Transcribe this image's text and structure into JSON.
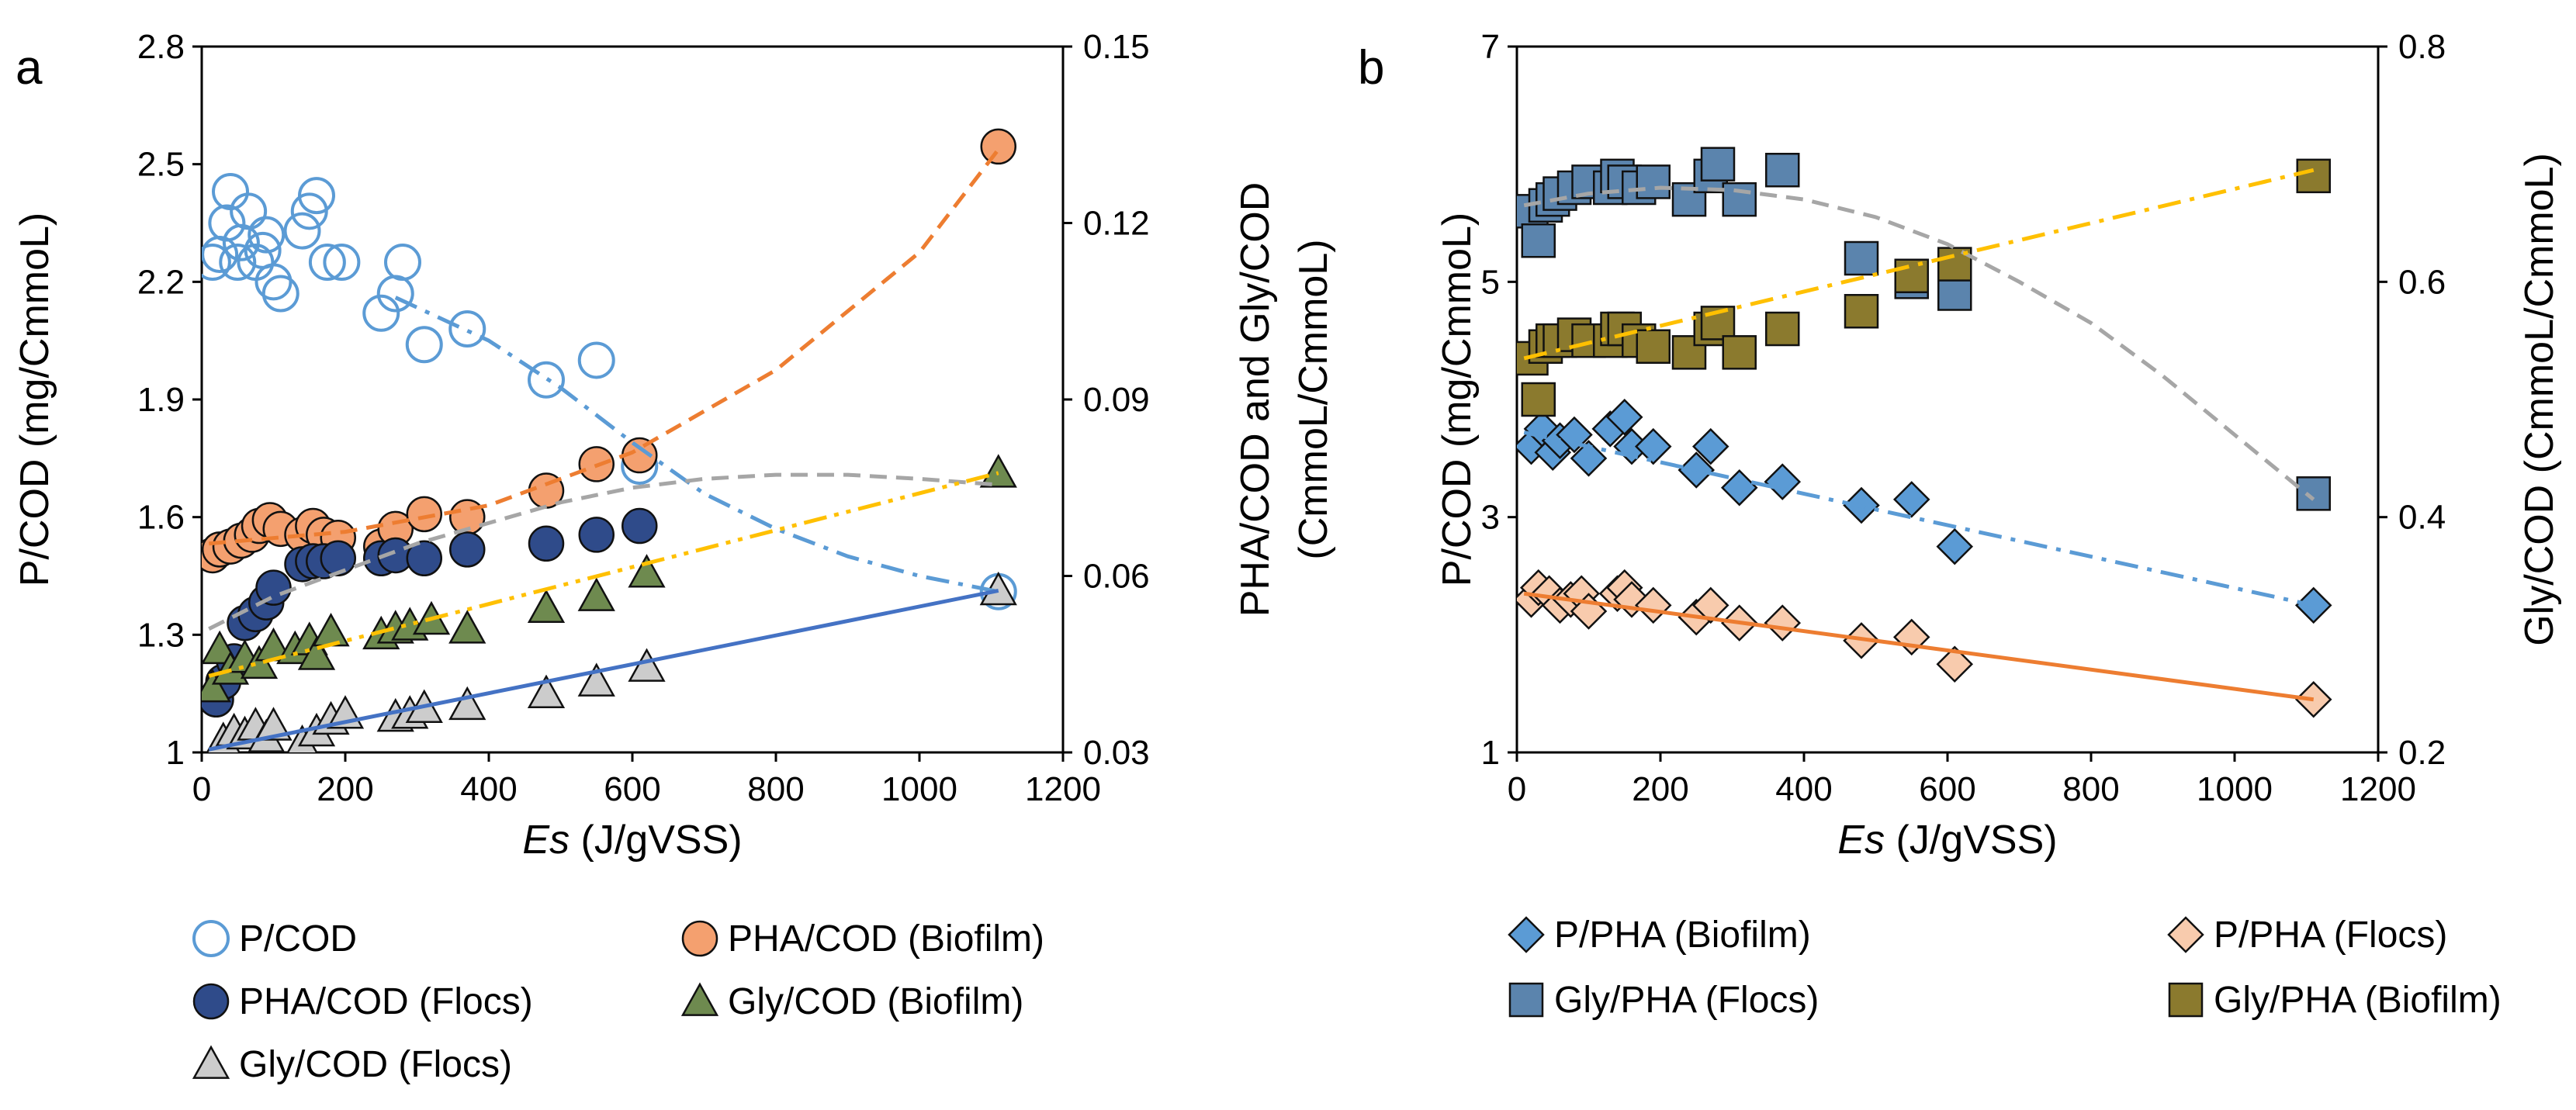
{
  "chart_data": [
    {
      "type": "scatter",
      "panel_label": "a",
      "xlabel_italic": "Es",
      "xlabel_rest": " (J/gVSS)",
      "ylabel": "P/COD (mg/CmmoL)",
      "y2label_line1": "PHA/COD and Gly/COD",
      "y2label_line2": "(CmmoL/CmmoL)",
      "xlim": [
        0,
        1200
      ],
      "ylim": [
        1,
        2.8
      ],
      "y2lim": [
        0.03,
        0.15
      ],
      "xticks": [
        "0",
        "200",
        "400",
        "600",
        "800",
        "1000",
        "1200"
      ],
      "yticks": [
        "1",
        "1.3",
        "1.6",
        "1.9",
        "2.2",
        "2.5",
        "2.8"
      ],
      "y2ticks": [
        "0.03",
        "0.06",
        "0.09",
        "0.12",
        "0.15"
      ],
      "series": [
        {
          "name": "P/COD",
          "axis": "y",
          "marker": "circle-open",
          "color": "#5b9bd5",
          "x": [
            15,
            25,
            35,
            40,
            50,
            55,
            65,
            75,
            85,
            90,
            100,
            110,
            140,
            150,
            160,
            175,
            195,
            250,
            270,
            280,
            310,
            370,
            480,
            550,
            610,
            1110
          ],
          "y": [
            2.25,
            2.27,
            2.35,
            2.43,
            2.25,
            2.3,
            2.38,
            2.25,
            2.28,
            2.32,
            2.2,
            2.17,
            2.33,
            2.38,
            2.42,
            2.25,
            2.25,
            2.12,
            2.17,
            2.25,
            2.04,
            2.08,
            1.95,
            2.0,
            1.73,
            1.41
          ]
        },
        {
          "name": "PHA/COD (Biofilm)",
          "axis": "y2",
          "marker": "circle",
          "color": "#f4a06f",
          "x": [
            15,
            25,
            40,
            55,
            70,
            80,
            95,
            110,
            140,
            155,
            170,
            190,
            250,
            270,
            310,
            370,
            480,
            550,
            610,
            1110
          ],
          "y": [
            0.0635,
            0.0645,
            0.065,
            0.066,
            0.067,
            0.0685,
            0.0695,
            0.068,
            0.067,
            0.0685,
            0.067,
            0.0665,
            0.065,
            0.068,
            0.0705,
            0.07,
            0.0745,
            0.079,
            0.0805,
            0.133
          ]
        },
        {
          "name": "PHA/COD (Flocs)",
          "axis": "y2",
          "marker": "circle",
          "color": "#2f4b8a",
          "x": [
            20,
            30,
            45,
            60,
            75,
            90,
            100,
            140,
            155,
            170,
            190,
            250,
            270,
            310,
            370,
            480,
            550,
            610
          ],
          "y": [
            0.039,
            0.042,
            0.0455,
            0.052,
            0.0535,
            0.0555,
            0.058,
            0.062,
            0.0625,
            0.0625,
            0.063,
            0.063,
            0.0635,
            0.063,
            0.0645,
            0.0655,
            0.067,
            0.0685
          ]
        },
        {
          "name": "Gly/COD (Biofilm)",
          "axis": "y2",
          "marker": "triangle",
          "color": "#6e8a4f",
          "x": [
            15,
            25,
            40,
            60,
            80,
            100,
            130,
            150,
            160,
            180,
            250,
            270,
            290,
            320,
            370,
            480,
            550,
            620,
            1110
          ],
          "y": [
            0.041,
            0.0475,
            0.044,
            0.046,
            0.045,
            0.048,
            0.0475,
            0.049,
            0.0465,
            0.0505,
            0.05,
            0.051,
            0.0515,
            0.0525,
            0.051,
            0.0545,
            0.0565,
            0.0605,
            0.0775
          ]
        },
        {
          "name": "Gly/COD (Flocs)",
          "axis": "y2",
          "marker": "triangle",
          "color": "#cccccc",
          "x": [
            30,
            45,
            60,
            75,
            90,
            100,
            140,
            160,
            180,
            200,
            270,
            290,
            310,
            370,
            480,
            550,
            620,
            1110
          ],
          "y": [
            0.032,
            0.0335,
            0.033,
            0.0345,
            0.0325,
            0.0345,
            0.0315,
            0.0335,
            0.0355,
            0.0365,
            0.036,
            0.0365,
            0.0375,
            0.038,
            0.04,
            0.042,
            0.0445,
            0.0575
          ]
        }
      ],
      "trendlines": [
        {
          "series": "P/COD",
          "axis": "y",
          "style": "dash-dot",
          "color": "#5b9bd5",
          "x": [
            270,
            400,
            500,
            600,
            700,
            800,
            900,
            1000,
            1110
          ],
          "y": [
            2.16,
            2.05,
            1.93,
            1.79,
            1.66,
            1.57,
            1.5,
            1.45,
            1.41
          ]
        },
        {
          "series": "PHA/COD (Biofilm)",
          "axis": "y2",
          "style": "dash",
          "color": "#ed7d31",
          "x": [
            10,
            200,
            400,
            600,
            800,
            1000,
            1110
          ],
          "y": [
            0.0655,
            0.0675,
            0.072,
            0.081,
            0.095,
            0.115,
            0.1325
          ]
        },
        {
          "series": "PHA/COD (Flocs)",
          "axis": "y2",
          "style": "dash",
          "color": "#a6a6a6",
          "x": [
            10,
            100,
            200,
            300,
            400,
            500,
            600,
            700,
            800,
            900,
            1000,
            1110
          ],
          "y": [
            0.051,
            0.0565,
            0.061,
            0.0655,
            0.069,
            0.0725,
            0.075,
            0.0765,
            0.0772,
            0.0772,
            0.0765,
            0.0755
          ]
        },
        {
          "series": "Gly/COD (Biofilm)",
          "axis": "y2",
          "style": "dash-dot-dot",
          "color": "#ffc000",
          "x": [
            10,
            1110
          ],
          "y": [
            0.043,
            0.0775
          ]
        },
        {
          "series": "Gly/COD (Flocs)",
          "axis": "y2",
          "style": "solid",
          "color": "#4472c4",
          "x": [
            10,
            1110
          ],
          "y": [
            0.0305,
            0.0575
          ]
        }
      ],
      "legend": [
        "P/COD",
        "PHA/COD (Biofilm)",
        "PHA/COD (Flocs)",
        "Gly/COD (Biofilm)",
        "Gly/COD (Flocs)"
      ]
    },
    {
      "type": "scatter",
      "panel_label": "b",
      "xlabel_italic": "Es",
      "xlabel_rest": " (J/gVSS)",
      "ylabel": "P/COD (mg/CmmoL)",
      "y2label": "Gly/COD (CmmoL/CmmoL)",
      "xlim": [
        0,
        1200
      ],
      "ylim": [
        1,
        7
      ],
      "y2lim": [
        0.2,
        0.8
      ],
      "xticks": [
        "0",
        "200",
        "400",
        "600",
        "800",
        "1000",
        "1200"
      ],
      "yticks": [
        "1",
        "3",
        "5",
        "7"
      ],
      "y2ticks": [
        "0.2",
        "0.4",
        "0.6",
        "0.8"
      ],
      "series": [
        {
          "name": "P/PHA (Biofilm)",
          "axis": "y",
          "marker": "diamond",
          "color": "#5b9bd5",
          "x": [
            20,
            35,
            50,
            60,
            80,
            100,
            130,
            150,
            160,
            190,
            250,
            270,
            310,
            370,
            480,
            550,
            610,
            1110
          ],
          "y": [
            3.6,
            3.75,
            3.55,
            3.65,
            3.7,
            3.5,
            3.75,
            3.85,
            3.6,
            3.6,
            3.4,
            3.6,
            3.25,
            3.3,
            3.1,
            3.15,
            2.75,
            2.25
          ]
        },
        {
          "name": "P/PHA (Flocs)",
          "axis": "y",
          "marker": "diamond",
          "color": "#f8cbad",
          "x": [
            20,
            30,
            45,
            60,
            75,
            90,
            100,
            140,
            150,
            160,
            190,
            250,
            270,
            310,
            370,
            480,
            550,
            610,
            1110
          ],
          "y": [
            2.3,
            2.4,
            2.35,
            2.25,
            2.3,
            2.35,
            2.2,
            2.35,
            2.4,
            2.3,
            2.25,
            2.15,
            2.25,
            2.1,
            2.1,
            1.95,
            1.98,
            1.75,
            1.45
          ]
        },
        {
          "name": "Gly/PHA (Flocs)",
          "axis": "y2",
          "marker": "square",
          "color": "#5b84ad",
          "x": [
            20,
            30,
            40,
            50,
            60,
            80,
            100,
            130,
            140,
            150,
            170,
            190,
            240,
            270,
            280,
            310,
            370,
            480,
            550,
            610,
            1110
          ],
          "y": [
            0.66,
            0.635,
            0.665,
            0.67,
            0.675,
            0.68,
            0.685,
            0.68,
            0.69,
            0.685,
            0.68,
            0.685,
            0.67,
            0.69,
            0.7,
            0.67,
            0.695,
            0.62,
            0.6,
            0.59,
            0.42
          ]
        },
        {
          "name": "Gly/PHA (Biofilm)",
          "axis": "y2",
          "marker": "square",
          "color": "#8b7a2e",
          "x": [
            20,
            30,
            40,
            50,
            60,
            80,
            100,
            130,
            140,
            150,
            170,
            190,
            240,
            270,
            280,
            310,
            370,
            480,
            550,
            610,
            1110
          ],
          "y": [
            0.535,
            0.5,
            0.545,
            0.55,
            0.55,
            0.555,
            0.55,
            0.55,
            0.56,
            0.56,
            0.55,
            0.545,
            0.54,
            0.56,
            0.565,
            0.54,
            0.56,
            0.575,
            0.605,
            0.615,
            0.69
          ]
        }
      ],
      "trendlines": [
        {
          "series": "P/PHA (Biofilm)",
          "axis": "y",
          "style": "dash-dot",
          "color": "#5b9bd5",
          "x": [
            10,
            1110
          ],
          "y": [
            3.72,
            2.25
          ]
        },
        {
          "series": "P/PHA (Flocs)",
          "axis": "y",
          "style": "solid",
          "color": "#ed7d31",
          "x": [
            10,
            1110
          ],
          "y": [
            2.35,
            1.45
          ]
        },
        {
          "series": "Gly/PHA (Flocs)",
          "axis": "y2",
          "style": "dash",
          "color": "#a6a6a6",
          "x": [
            10,
            100,
            200,
            300,
            400,
            500,
            600,
            700,
            800,
            900,
            1000,
            1110
          ],
          "y": [
            0.665,
            0.675,
            0.68,
            0.678,
            0.67,
            0.655,
            0.632,
            0.6,
            0.565,
            0.52,
            0.47,
            0.415
          ]
        },
        {
          "series": "Gly/PHA (Biofilm)",
          "axis": "y2",
          "style": "dash-dot",
          "color": "#ffc000",
          "x": [
            10,
            1110
          ],
          "y": [
            0.535,
            0.695
          ]
        }
      ],
      "legend": [
        "P/PHA (Biofilm)",
        "P/PHA (Flocs)",
        "Gly/PHA (Flocs)",
        "Gly/PHA (Biofilm)"
      ]
    }
  ]
}
